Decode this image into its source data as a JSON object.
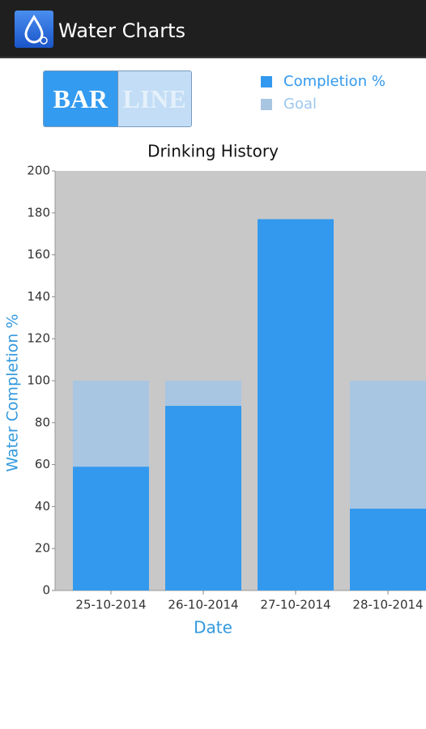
{
  "app_bar": {
    "title": "Water Charts"
  },
  "toggle": {
    "options": [
      "BAR",
      "LINE"
    ]
  },
  "chart_data": {
    "type": "bar",
    "title": "Drinking History",
    "xlabel": "Date",
    "ylabel": "Water Completion %",
    "categories": [
      "25-10-2014",
      "26-10-2014",
      "27-10-2014",
      "28-10-2014"
    ],
    "series": [
      {
        "name": "Completion %",
        "color": "#3399ee",
        "values": [
          59,
          88,
          177,
          39
        ]
      },
      {
        "name": "Goal",
        "color": "#a8c6e2",
        "values": [
          100,
          100,
          100,
          100
        ]
      }
    ],
    "ylim": [
      0,
      200
    ],
    "yticks": [
      0,
      20,
      40,
      60,
      80,
      100,
      120,
      140,
      160,
      180,
      200
    ]
  }
}
